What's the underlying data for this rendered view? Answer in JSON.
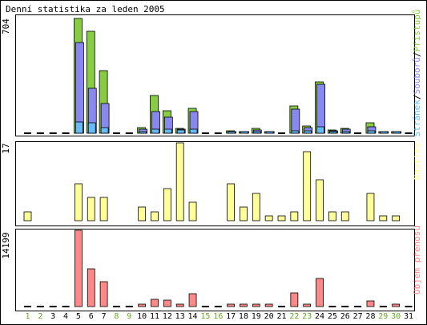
{
  "title": "Denní statistika za leden 2005",
  "days": [
    "1",
    "2",
    "3",
    "4",
    "5",
    "6",
    "7",
    "8",
    "9",
    "10",
    "11",
    "12",
    "13",
    "14",
    "15",
    "16",
    "17",
    "18",
    "19",
    "20",
    "21",
    "22",
    "23",
    "24",
    "25",
    "26",
    "27",
    "28",
    "29",
    "30",
    "31"
  ],
  "weekend_days": [
    "1",
    "2",
    "8",
    "9",
    "15",
    "16",
    "22",
    "23",
    "29",
    "30"
  ],
  "colors": {
    "pristupu": "#88cc44",
    "souboru": "#8888ee",
    "stranek": "#66bbff",
    "navstev": "#ffff99",
    "prenosu": "#ff8888",
    "weekend_label": "#66aa22",
    "weekday_label": "#000000",
    "zero_bar": "#000000"
  },
  "chart_data": [
    {
      "type": "bar",
      "title": "Denní statistika za leden 2005",
      "ylabel": "704",
      "ymax": 704,
      "legend": {
        "items": [
          "Stránek",
          "Souborů",
          "Přístupů"
        ],
        "separator": "/"
      },
      "categories": [
        "1",
        "2",
        "3",
        "4",
        "5",
        "6",
        "7",
        "8",
        "9",
        "10",
        "11",
        "12",
        "13",
        "14",
        "15",
        "16",
        "17",
        "18",
        "19",
        "20",
        "21",
        "22",
        "23",
        "24",
        "25",
        "26",
        "27",
        "28",
        "29",
        "30",
        "31"
      ],
      "series": [
        {
          "name": "Přístupů",
          "values": [
            0,
            0,
            0,
            0,
            704,
            625,
            383,
            0,
            0,
            35,
            229,
            140,
            28,
            154,
            0,
            0,
            14,
            9,
            28,
            9,
            0,
            166,
            42,
            317,
            19,
            28,
            0,
            63,
            9,
            9,
            0
          ]
        },
        {
          "name": "Souborů",
          "values": [
            0,
            0,
            0,
            0,
            554,
            278,
            184,
            0,
            0,
            23,
            131,
            96,
            23,
            135,
            0,
            0,
            9,
            5,
            18,
            5,
            0,
            149,
            33,
            300,
            14,
            23,
            0,
            37,
            5,
            5,
            0
          ]
        },
        {
          "name": "Stránek",
          "values": [
            0,
            0,
            0,
            0,
            71,
            65,
            33,
            0,
            0,
            9,
            23,
            23,
            19,
            23,
            0,
            0,
            5,
            5,
            9,
            5,
            0,
            14,
            14,
            37,
            9,
            9,
            0,
            14,
            5,
            5,
            0
          ]
        }
      ]
    },
    {
      "type": "bar",
      "ylabel": "17",
      "ymax": 17,
      "legend": {
        "items": [
          "Návštěv"
        ],
        "separator": ""
      },
      "categories": [
        "1",
        "2",
        "3",
        "4",
        "5",
        "6",
        "7",
        "8",
        "9",
        "10",
        "11",
        "12",
        "13",
        "14",
        "15",
        "16",
        "17",
        "18",
        "19",
        "20",
        "21",
        "22",
        "23",
        "24",
        "25",
        "26",
        "27",
        "28",
        "29",
        "30",
        "31"
      ],
      "series": [
        {
          "name": "Návštěv",
          "values": [
            2,
            0,
            0,
            0,
            8,
            5,
            5,
            0,
            0,
            3,
            2,
            7,
            17,
            4,
            0,
            0,
            8,
            3,
            6,
            1,
            1,
            2,
            15,
            9,
            2,
            2,
            0,
            6,
            1,
            1,
            0
          ]
        }
      ]
    },
    {
      "type": "bar",
      "ylabel": "14199",
      "ymax": 14199,
      "legend": {
        "items": [
          "Objem přenosu"
        ],
        "separator": ""
      },
      "categories": [
        "1",
        "2",
        "3",
        "4",
        "5",
        "6",
        "7",
        "8",
        "9",
        "10",
        "11",
        "12",
        "13",
        "14",
        "15",
        "16",
        "17",
        "18",
        "19",
        "20",
        "21",
        "22",
        "23",
        "24",
        "25",
        "26",
        "27",
        "28",
        "29",
        "30",
        "31"
      ],
      "series": [
        {
          "name": "Objem přenosu",
          "values": [
            0,
            0,
            0,
            0,
            14199,
            7000,
            4700,
            0,
            0,
            390,
            1380,
            1140,
            260,
            2400,
            0,
            0,
            130,
            130,
            390,
            260,
            0,
            2600,
            470,
            5300,
            0,
            0,
            0,
            1000,
            0,
            260,
            0
          ]
        }
      ]
    }
  ]
}
